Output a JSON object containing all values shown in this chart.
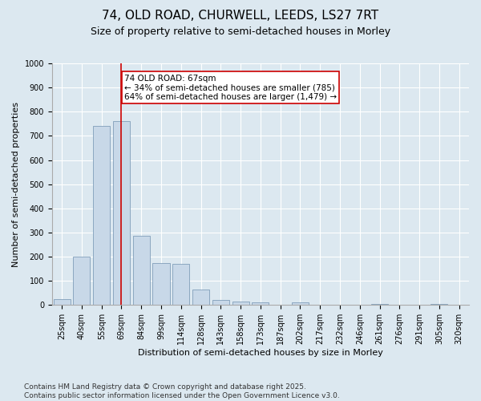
{
  "title_line1": "74, OLD ROAD, CHURWELL, LEEDS, LS27 7RT",
  "title_line2": "Size of property relative to semi-detached houses in Morley",
  "xlabel": "Distribution of semi-detached houses by size in Morley",
  "ylabel": "Number of semi-detached properties",
  "categories": [
    "25sqm",
    "40sqm",
    "55sqm",
    "69sqm",
    "84sqm",
    "99sqm",
    "114sqm",
    "128sqm",
    "143sqm",
    "158sqm",
    "173sqm",
    "187sqm",
    "202sqm",
    "217sqm",
    "232sqm",
    "246sqm",
    "261sqm",
    "276sqm",
    "291sqm",
    "305sqm",
    "320sqm"
  ],
  "values": [
    25,
    200,
    740,
    760,
    285,
    175,
    170,
    65,
    20,
    15,
    10,
    0,
    10,
    0,
    0,
    0,
    5,
    0,
    0,
    5,
    0
  ],
  "bar_color": "#c8d8e8",
  "bar_edge_color": "#7090b0",
  "vline_x": 3,
  "vline_color": "#cc0000",
  "annotation_text": "74 OLD ROAD: 67sqm\n← 34% of semi-detached houses are smaller (785)\n64% of semi-detached houses are larger (1,479) →",
  "annotation_box_color": "#ffffff",
  "annotation_box_edge_color": "#cc0000",
  "ylim": [
    0,
    1000
  ],
  "yticks": [
    0,
    100,
    200,
    300,
    400,
    500,
    600,
    700,
    800,
    900,
    1000
  ],
  "background_color": "#dce8f0",
  "plot_background_color": "#dce8f0",
  "footer_text": "Contains HM Land Registry data © Crown copyright and database right 2025.\nContains public sector information licensed under the Open Government Licence v3.0.",
  "title_fontsize": 11,
  "subtitle_fontsize": 9,
  "axis_label_fontsize": 8,
  "tick_fontsize": 7,
  "annotation_fontsize": 7.5,
  "footer_fontsize": 6.5
}
